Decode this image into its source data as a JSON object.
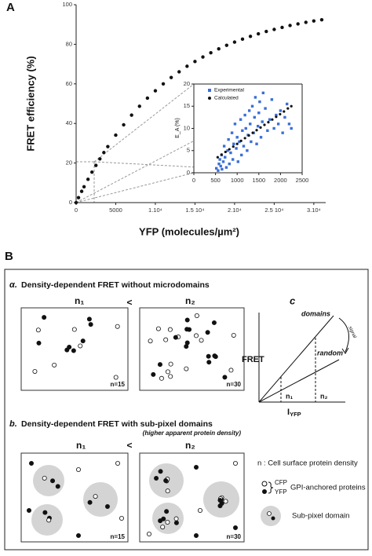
{
  "chart_data": [
    {
      "type": "scatter",
      "panel_label": "A",
      "ylabel": "FRET efficiency (%)",
      "xlabel": "YFP (molecules/µm²)",
      "color": "#111111",
      "x": [
        0,
        300,
        700,
        1000,
        1500,
        2000,
        2500,
        3000,
        3500,
        4000,
        5000,
        6000,
        7000,
        8000,
        9000,
        10000,
        11000,
        12000,
        13000,
        14000,
        15000,
        16000,
        17000,
        18000,
        19000,
        20000,
        21000,
        22000,
        23000,
        24000,
        25000,
        26000,
        27000,
        28000,
        29000,
        30000,
        31000
      ],
      "values": [
        0,
        2.5,
        5.7,
        8.0,
        11.8,
        15.4,
        18.8,
        22.1,
        25.3,
        28.3,
        34.1,
        39.3,
        44.2,
        48.7,
        52.8,
        56.5,
        60.0,
        63.2,
        66.1,
        68.9,
        71.3,
        73.6,
        75.7,
        77.7,
        79.5,
        81.1,
        82.6,
        84.0,
        85.3,
        86.5,
        87.5,
        88.5,
        89.5,
        90.3,
        91.1,
        91.8,
        92.4
      ],
      "xlim": [
        0,
        31500
      ],
      "ylim": [
        0,
        100
      ],
      "xticks": [
        0,
        5000,
        {
          "value": 10000,
          "label": "1.10⁴"
        },
        {
          "value": 15000,
          "label": "1.5 10⁴"
        },
        {
          "value": 20000,
          "label": "2.10⁴"
        },
        {
          "value": 25000,
          "label": "2.5 10⁴"
        },
        {
          "value": 30000,
          "label": "3.10⁴"
        }
      ],
      "yticks": [
        0,
        20,
        40,
        60,
        80,
        100
      ]
    },
    {
      "type": "scatter",
      "ylabel": "E_A (%)",
      "xlim": [
        0,
        2500
      ],
      "ylim": [
        0,
        20
      ],
      "xticks": [
        0,
        500,
        1000,
        1500,
        2000,
        2500
      ],
      "yticks": [
        0,
        5,
        10,
        15,
        20
      ],
      "series": [
        {
          "name": "Experimental",
          "color": "#3a6fd8",
          "x": [
            520,
            560,
            580,
            600,
            620,
            640,
            650,
            680,
            700,
            720,
            750,
            780,
            800,
            820,
            850,
            880,
            900,
            920,
            950,
            980,
            1000,
            1020,
            1050,
            1080,
            1100,
            1120,
            1150,
            1180,
            1200,
            1230,
            1250,
            1280,
            1300,
            1320,
            1350,
            1380,
            1400,
            1420,
            1450,
            1480,
            1500,
            1520,
            1550,
            1580,
            1600,
            1650,
            1700,
            1750,
            1800,
            1850,
            1900,
            1950,
            2000,
            2050,
            2100,
            2150,
            2200,
            2250
          ],
          "values": [
            1,
            0.5,
            2,
            3,
            1.5,
            4,
            0.8,
            2.5,
            6,
            3.5,
            1.2,
            5,
            7.5,
            2,
            4.5,
            9,
            3,
            6.5,
            11,
            5.5,
            8,
            2.5,
            7,
            12,
            4,
            9.5,
            6,
            13,
            10,
            5,
            8.5,
            14,
            11,
            7,
            15,
            9,
            12.5,
            17,
            6.5,
            10.5,
            13.5,
            16,
            8,
            11.5,
            18,
            14.5,
            9.5,
            12,
            16.5,
            10,
            13,
            11,
            14,
            9,
            12.5,
            15.5,
            11,
            10
          ]
        },
        {
          "name": "Calculated",
          "color": "#111111",
          "x": [
            550,
            640,
            730,
            820,
            910,
            1000,
            1090,
            1180,
            1270,
            1360,
            1450,
            1540,
            1630,
            1720,
            1810,
            1900,
            1990,
            2080,
            2170,
            2250
          ],
          "values": [
            3.5,
            4.1,
            4.7,
            5.3,
            5.9,
            6.5,
            7.2,
            7.8,
            8.4,
            9.0,
            9.6,
            10.2,
            10.8,
            11.4,
            12.0,
            12.6,
            13.2,
            13.8,
            14.5,
            15.0
          ]
        }
      ]
    }
  ],
  "diagram": {
    "panel_label": "B",
    "a_marker": "α.",
    "a_title": "Density-dependent FRET without microdomains",
    "b_marker": "b.",
    "b_title": "Density-dependent FRET with sub-pixel domains",
    "b_subtitle": "(higher apparent protein density)",
    "n1": "n₁",
    "n2": "n₂",
    "less": "<",
    "count_1": "n=15",
    "count_2": "n=30",
    "c_label": "c",
    "fret_axis": "FRET",
    "intensity_axis": {
      "main": "I",
      "sub": "YFP"
    },
    "domains": "domains",
    "random": "random",
    "signal": "signal",
    "legend": {
      "density": "n : Cell surface protein density",
      "cfp": "CFP",
      "yfp": "YFP",
      "gpi": "GPI-anchored proteins",
      "subpixel": "Sub-pixel domain"
    }
  }
}
